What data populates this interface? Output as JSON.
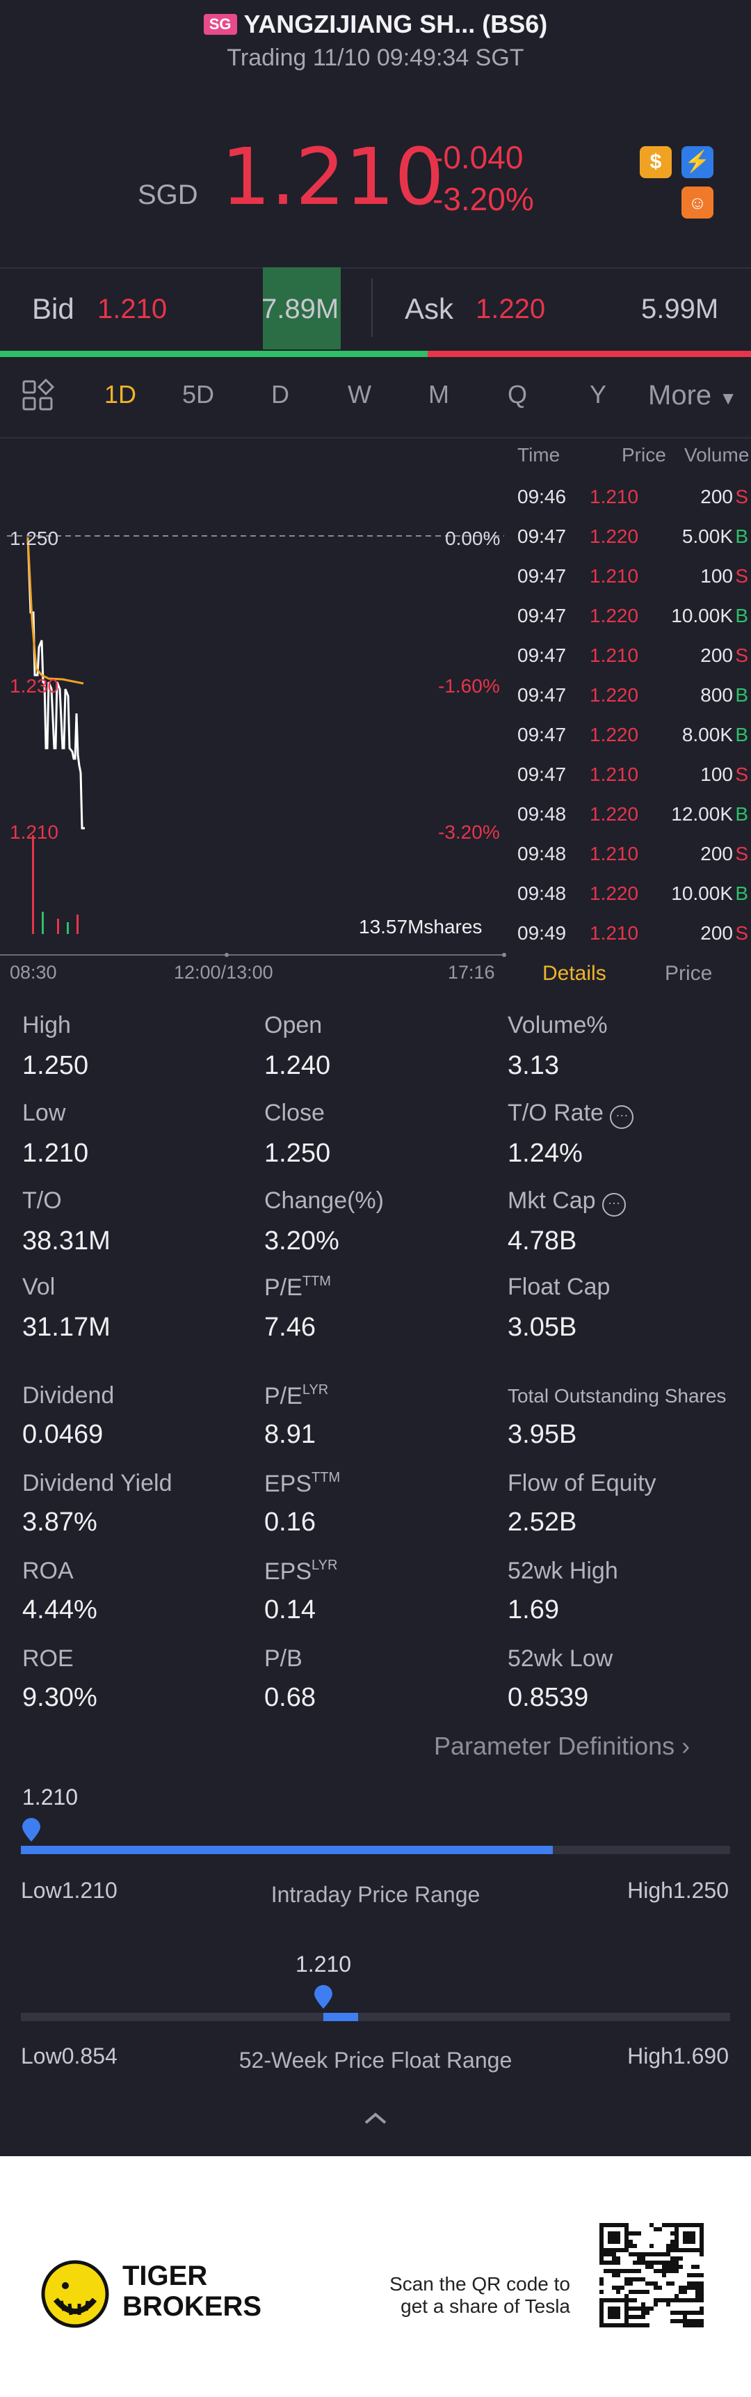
{
  "header": {
    "badge": "SG",
    "title": "YANGZIJIANG SH... (BS6)",
    "status": "Trading 11/10 09:49:34 SGT"
  },
  "quote": {
    "currency": "SGD",
    "price": "1.210",
    "change": "-0.040",
    "change_pct": "-3.20%"
  },
  "quote_icons": [
    "dollar-icon",
    "lightning-icon",
    "chat-icon"
  ],
  "bid_ask": {
    "bid_label": "Bid",
    "bid_price": "1.210",
    "bid_volume": "7.89M",
    "ask_label": "Ask",
    "ask_price": "1.220",
    "ask_volume": "5.99M",
    "bid_share": 0.569
  },
  "tabs": [
    "1D",
    "5D",
    "D",
    "W",
    "M",
    "Q",
    "Y",
    "More"
  ],
  "active_tab": "1D",
  "chart": {
    "price_labels": [
      "1.250",
      "1.230",
      "1.210"
    ],
    "pct_labels": [
      "0.00%",
      "-1.60%",
      "-3.20%"
    ],
    "volume_label": "13.57Mshares",
    "time_labels": [
      "08:30",
      "12:00/13:00",
      "17:16"
    ]
  },
  "trades": {
    "headers": [
      "Time",
      "Price",
      "Volume"
    ],
    "rows": [
      {
        "time": "09:46",
        "price": "1.210",
        "volume": "200",
        "side": "S"
      },
      {
        "time": "09:47",
        "price": "1.220",
        "volume": "5.00K",
        "side": "B"
      },
      {
        "time": "09:47",
        "price": "1.210",
        "volume": "100",
        "side": "S"
      },
      {
        "time": "09:47",
        "price": "1.220",
        "volume": "10.00K",
        "side": "B"
      },
      {
        "time": "09:47",
        "price": "1.210",
        "volume": "200",
        "side": "S"
      },
      {
        "time": "09:47",
        "price": "1.220",
        "volume": "800",
        "side": "B"
      },
      {
        "time": "09:47",
        "price": "1.220",
        "volume": "8.00K",
        "side": "B"
      },
      {
        "time": "09:47",
        "price": "1.210",
        "volume": "100",
        "side": "S"
      },
      {
        "time": "09:48",
        "price": "1.220",
        "volume": "12.00K",
        "side": "B"
      },
      {
        "time": "09:48",
        "price": "1.210",
        "volume": "200",
        "side": "S"
      },
      {
        "time": "09:48",
        "price": "1.220",
        "volume": "10.00K",
        "side": "B"
      },
      {
        "time": "09:49",
        "price": "1.210",
        "volume": "200",
        "side": "S"
      }
    ],
    "tab_details": "Details",
    "tab_price": "Price"
  },
  "stats": {
    "high_label": "High",
    "high": "1.250",
    "open_label": "Open",
    "open": "1.240",
    "volpct_label": "Volume%",
    "volpct": "3.13",
    "low_label": "Low",
    "low": "1.210",
    "close_label": "Close",
    "close": "1.250",
    "torate_label": "T/O Rate",
    "torate": "1.24%",
    "to_label": "T/O",
    "to": "38.31M",
    "changepct_label": "Change(%)",
    "changepct": "3.20%",
    "mktcap_label": "Mkt Cap",
    "mktcap": "4.78B",
    "vol_label": "Vol",
    "vol": "31.17M",
    "pe_ttm_label": "P/E",
    "pe_ttm_sup": "TTM",
    "pe_ttm": "7.46",
    "floatcap_label": "Float Cap",
    "floatcap": "3.05B",
    "dividend_label": "Dividend",
    "dividend": "0.0469",
    "pe_lyr_label": "P/E",
    "pe_lyr_sup": "LYR",
    "pe_lyr": "8.91",
    "tos_label": "Total Outstanding Shares",
    "tos": "3.95B",
    "divyield_label": "Dividend Yield",
    "divyield": "3.87%",
    "eps_ttm_label": "EPS",
    "eps_ttm_sup": "TTM",
    "eps_ttm": "0.16",
    "flow_label": "Flow of Equity",
    "flow": "2.52B",
    "roa_label": "ROA",
    "roa": "4.44%",
    "eps_lyr_label": "EPS",
    "eps_lyr_sup": "LYR",
    "eps_lyr": "0.14",
    "wkhigh_label": "52wk High",
    "wkhigh": "1.69",
    "roe_label": "ROE",
    "roe": "9.30%",
    "pb_label": "P/B",
    "pb": "0.68",
    "wklow_label": "52wk Low",
    "wklow": "0.8539"
  },
  "param_link": "Parameter Definitions",
  "intraday_range": {
    "current": "1.210",
    "low": "Low1.210",
    "title": "Intraday Price Range",
    "high": "High1.250",
    "fill_fraction": 0.75
  },
  "week52_range": {
    "current": "1.210",
    "low": "Low0.854",
    "title": "52-Week Price Float Range",
    "high": "High1.690",
    "position_fraction": 0.426
  },
  "promo": {
    "brand_line1": "TIGER",
    "brand_line2": "BROKERS",
    "cta_line1": "Scan the QR code to",
    "cta_line2": "get a share of Tesla"
  }
}
